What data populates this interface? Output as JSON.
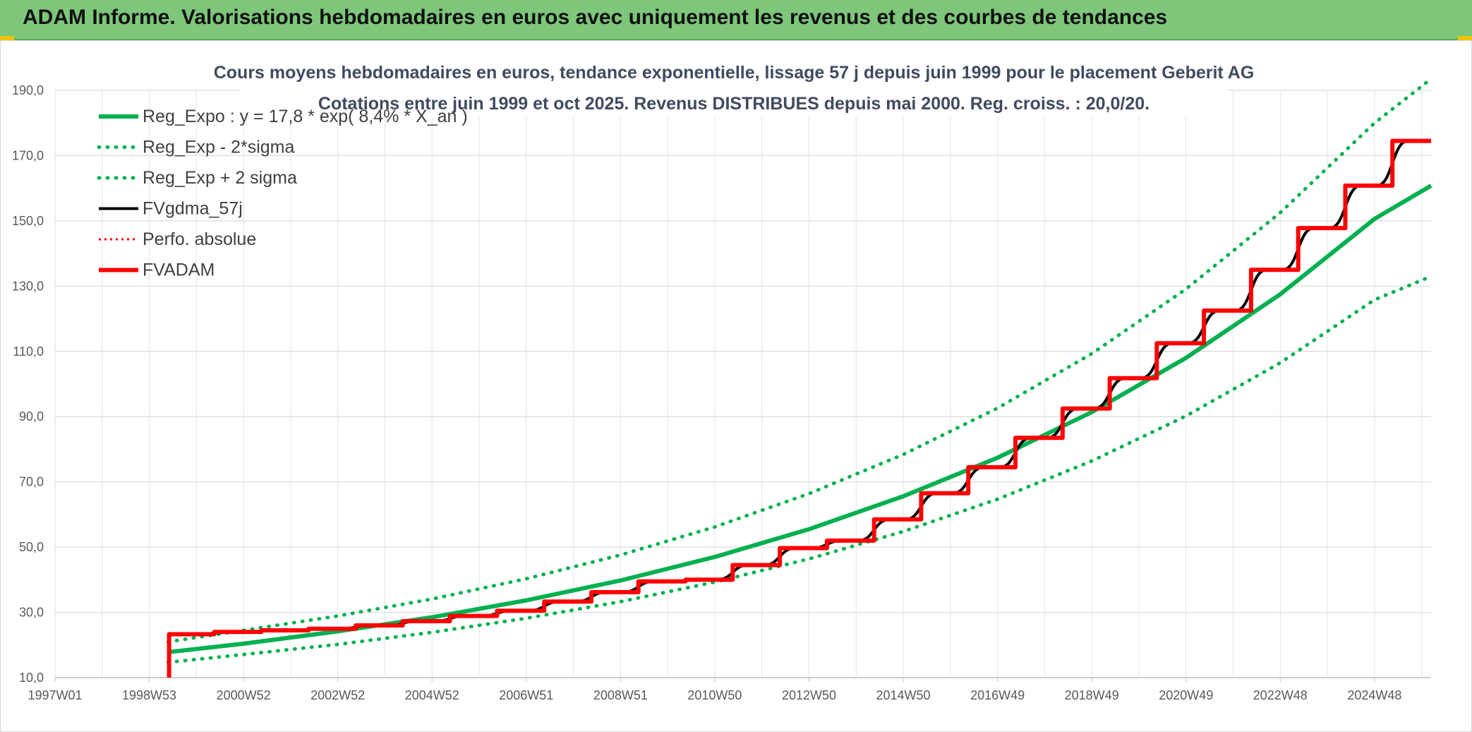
{
  "banner": {
    "title": "ADAM Informe. Valorisations hebdomadaires en euros avec uniquement les revenus et des courbes de tendances",
    "color": "#7dc67a"
  },
  "chart_data": {
    "type": "line",
    "title": "Cours moyens hebdomadaires en euros, tendance exponentielle, lissage 57 j depuis juin 1999 pour le placement Geberit AG",
    "subtitle": "Cotations entre juin 1999 et oct 2025. Revenus DISTRIBUES depuis mai 2000. Reg. croiss. : 20,0/20.",
    "xlabel": "",
    "ylabel": "",
    "ylim": [
      10,
      190
    ],
    "y_ticks": [
      "10,0",
      "30,0",
      "50,0",
      "70,0",
      "90,0",
      "110,0",
      "130,0",
      "150,0",
      "170,0",
      "190,0"
    ],
    "x_ticks": [
      "1997W01",
      "1998W53",
      "2000W52",
      "2002W52",
      "2004W52",
      "2006W51",
      "2008W51",
      "2010W50",
      "2012W50",
      "2014W50",
      "2016W49",
      "2018W49",
      "2020W49",
      "2022W48",
      "2024W48"
    ],
    "xlim": [
      1997.0,
      2026.2
    ],
    "grid": true,
    "legend_position": "top-left",
    "series": [
      {
        "name": "Reg_Expo : y = 17,8 * exp( 8,4% *  X_an )",
        "color": "#00b050",
        "style": "solid",
        "x": [
          1999.4,
          2001,
          2003,
          2005,
          2007,
          2009,
          2011,
          2013,
          2015,
          2017,
          2019,
          2021,
          2023,
          2025,
          2026.2
        ],
        "y": [
          17.8,
          20.4,
          24.2,
          28.5,
          33.7,
          39.8,
          47.0,
          55.5,
          65.6,
          77.4,
          91.4,
          108.0,
          127.5,
          150.6,
          160.8
        ]
      },
      {
        "name": "Reg_Exp - 2*sigma",
        "color": "#00b050",
        "style": "dotted",
        "x": [
          1999.4,
          2001,
          2003,
          2005,
          2007,
          2009,
          2011,
          2013,
          2015,
          2017,
          2019,
          2021,
          2023,
          2025,
          2026.2
        ],
        "y": [
          14.7,
          17.1,
          20.2,
          23.9,
          28.2,
          33.3,
          39.3,
          46.4,
          54.8,
          64.7,
          76.4,
          90.2,
          106.5,
          125.8,
          133.0
        ]
      },
      {
        "name": "Reg_Exp + 2 sigma",
        "color": "#00b050",
        "style": "dotted",
        "x": [
          1999.4,
          2001,
          2003,
          2005,
          2007,
          2009,
          2011,
          2013,
          2015,
          2017,
          2019,
          2021,
          2023,
          2025,
          2026.2
        ],
        "y": [
          21.0,
          24.5,
          28.9,
          34.1,
          40.3,
          47.6,
          56.2,
          66.4,
          78.4,
          92.6,
          109.3,
          129.1,
          152.5,
          180.0,
          193.5
        ]
      },
      {
        "name": "FVgdma_57j",
        "color": "#000000",
        "style": "solid-smooth",
        "steps": [
          [
            1999.42,
            23.3
          ],
          [
            2000.38,
            24.0
          ],
          [
            2001.38,
            24.5
          ],
          [
            2002.38,
            25.0
          ],
          [
            2003.38,
            26.0
          ],
          [
            2004.38,
            27.3
          ],
          [
            2005.38,
            28.9
          ],
          [
            2006.38,
            30.5
          ],
          [
            2007.38,
            33.3
          ],
          [
            2008.38,
            36.2
          ],
          [
            2009.38,
            39.5
          ],
          [
            2010.38,
            40.0
          ],
          [
            2011.38,
            44.5
          ],
          [
            2012.38,
            49.7
          ],
          [
            2013.38,
            52.0
          ],
          [
            2014.38,
            58.5
          ],
          [
            2015.38,
            66.5
          ],
          [
            2016.38,
            74.5
          ],
          [
            2017.38,
            83.5
          ],
          [
            2018.38,
            92.5
          ],
          [
            2019.38,
            101.8
          ],
          [
            2020.38,
            112.5
          ],
          [
            2021.38,
            122.5
          ],
          [
            2022.38,
            135.0
          ],
          [
            2023.38,
            147.8
          ],
          [
            2024.38,
            160.8
          ],
          [
            2025.38,
            174.5
          ]
        ],
        "end_x": 2026.2
      },
      {
        "name": "Perfo. absolue",
        "color": "#ff0000",
        "style": "dotted",
        "steps": [
          [
            1999.42,
            23.3
          ],
          [
            2000.38,
            24.0
          ],
          [
            2001.38,
            24.5
          ],
          [
            2002.38,
            25.0
          ],
          [
            2003.38,
            26.0
          ],
          [
            2004.38,
            27.3
          ],
          [
            2005.38,
            28.9
          ],
          [
            2006.38,
            30.5
          ],
          [
            2007.38,
            33.3
          ],
          [
            2008.38,
            36.2
          ],
          [
            2009.38,
            39.5
          ],
          [
            2010.38,
            40.0
          ],
          [
            2011.38,
            44.5
          ],
          [
            2012.38,
            49.7
          ],
          [
            2013.38,
            52.0
          ],
          [
            2014.38,
            58.5
          ],
          [
            2015.38,
            66.5
          ],
          [
            2016.38,
            74.5
          ],
          [
            2017.38,
            83.5
          ],
          [
            2018.38,
            92.5
          ],
          [
            2019.38,
            101.8
          ],
          [
            2020.38,
            112.5
          ],
          [
            2021.38,
            122.5
          ],
          [
            2022.38,
            135.0
          ],
          [
            2023.38,
            147.8
          ],
          [
            2024.38,
            160.8
          ],
          [
            2025.38,
            174.5
          ]
        ],
        "end_x": 2026.2
      },
      {
        "name": "FVADAM",
        "color": "#ff0000",
        "style": "solid-step",
        "steps": [
          [
            1999.42,
            23.3
          ],
          [
            2000.38,
            24.0
          ],
          [
            2001.38,
            24.5
          ],
          [
            2002.38,
            25.0
          ],
          [
            2003.38,
            26.0
          ],
          [
            2004.38,
            27.3
          ],
          [
            2005.38,
            28.9
          ],
          [
            2006.38,
            30.5
          ],
          [
            2007.38,
            33.3
          ],
          [
            2008.38,
            36.2
          ],
          [
            2009.38,
            39.5
          ],
          [
            2010.38,
            40.0
          ],
          [
            2011.38,
            44.5
          ],
          [
            2012.38,
            49.7
          ],
          [
            2013.38,
            52.0
          ],
          [
            2014.38,
            58.5
          ],
          [
            2015.38,
            66.5
          ],
          [
            2016.38,
            74.5
          ],
          [
            2017.38,
            83.5
          ],
          [
            2018.38,
            92.5
          ],
          [
            2019.38,
            101.8
          ],
          [
            2020.38,
            112.5
          ],
          [
            2021.38,
            122.5
          ],
          [
            2022.38,
            135.0
          ],
          [
            2023.38,
            147.8
          ],
          [
            2024.38,
            160.8
          ],
          [
            2025.38,
            174.5
          ]
        ],
        "end_x": 2026.2,
        "start_y": 10.0
      }
    ]
  }
}
